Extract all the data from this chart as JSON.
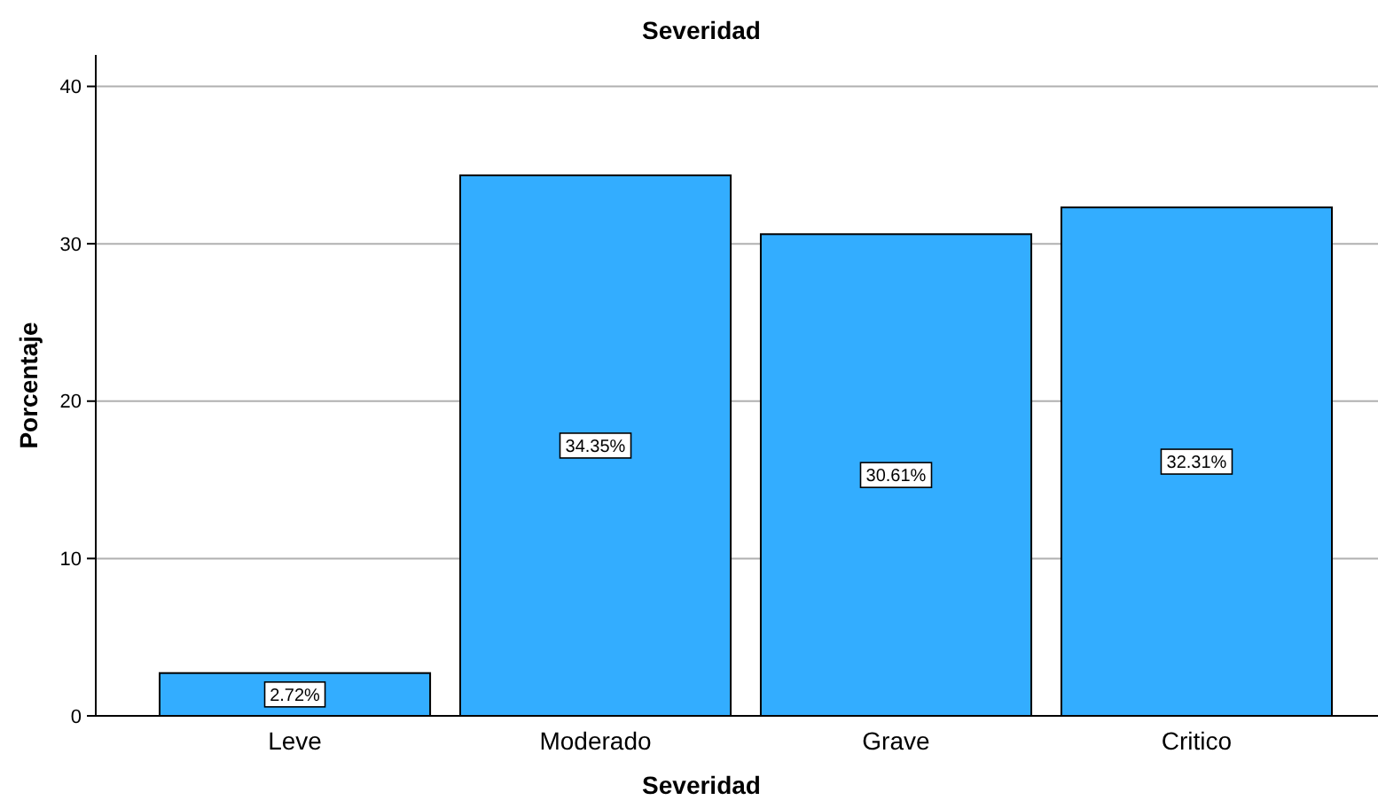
{
  "chart_data": {
    "type": "bar",
    "title": "Severidad",
    "xlabel": "Severidad",
    "ylabel": "Porcentaje",
    "categories": [
      "Leve",
      "Moderado",
      "Grave",
      "Critico"
    ],
    "values": [
      2.72,
      34.35,
      30.61,
      32.31
    ],
    "value_labels": [
      "2.72%",
      "34.35%",
      "30.61%",
      "32.31%"
    ],
    "color": "#33adff",
    "ylim": [
      0,
      42
    ],
    "yticks": [
      0,
      10,
      20,
      30,
      40
    ],
    "grid": "y"
  }
}
